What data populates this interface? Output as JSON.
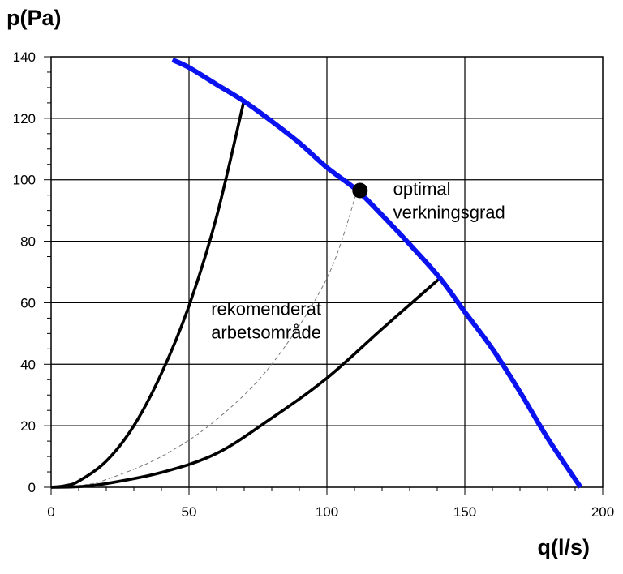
{
  "chart_data": {
    "type": "line",
    "title": "",
    "ylabel": "p(Pa)",
    "xlabel": "q(l/s)",
    "xlim": [
      0,
      200
    ],
    "ylim": [
      0,
      140
    ],
    "x_ticks": [
      0,
      50,
      100,
      150,
      200
    ],
    "y_ticks": [
      0,
      20,
      40,
      60,
      80,
      100,
      120,
      140
    ],
    "grid": true,
    "colors": {
      "fan_curve": "#0a12f0",
      "boundary": "#000000",
      "optimal_line": "#777777",
      "optimal_point": "#000000"
    },
    "series": [
      {
        "style": "solid-blue-thick",
        "x": [
          44,
          50,
          60,
          70,
          80,
          90,
          100,
          111,
          120,
          130,
          141,
          150,
          160,
          170,
          180,
          192
        ],
        "y": [
          139,
          136.5,
          131,
          125.5,
          119,
          112,
          104,
          96.5,
          88.5,
          79,
          68,
          57,
          45,
          31,
          16,
          0
        ]
      },
      {
        "style": "solid-black",
        "x": [
          0,
          5,
          10,
          20,
          30,
          40,
          50,
          60,
          70
        ],
        "y": [
          0,
          0.5,
          2,
          8.5,
          20,
          37,
          59,
          88,
          126
        ]
      },
      {
        "style": "solid-black",
        "x": [
          0,
          10,
          20,
          40,
          60,
          80,
          100,
          120,
          141
        ],
        "y": [
          0,
          0.2,
          1.2,
          4.8,
          11,
          22.5,
          35.5,
          51.5,
          68
        ]
      },
      {
        "style": "dashed-gray",
        "x": [
          0,
          10,
          20,
          40,
          60,
          80,
          100,
          111
        ],
        "y": [
          0,
          0.5,
          2.5,
          10,
          22,
          40,
          68,
          96.5
        ]
      }
    ],
    "points": [
      {
        "label": "optimal verkningsgrad",
        "x": 112,
        "y": 96.5
      }
    ],
    "annotations": [
      {
        "lines": [
          "optimal",
          "verkningsgrad"
        ],
        "x": 124,
        "y": 95
      },
      {
        "lines": [
          "rekomenderat",
          "arbetsområde"
        ],
        "x": 58,
        "y": 56
      }
    ]
  }
}
